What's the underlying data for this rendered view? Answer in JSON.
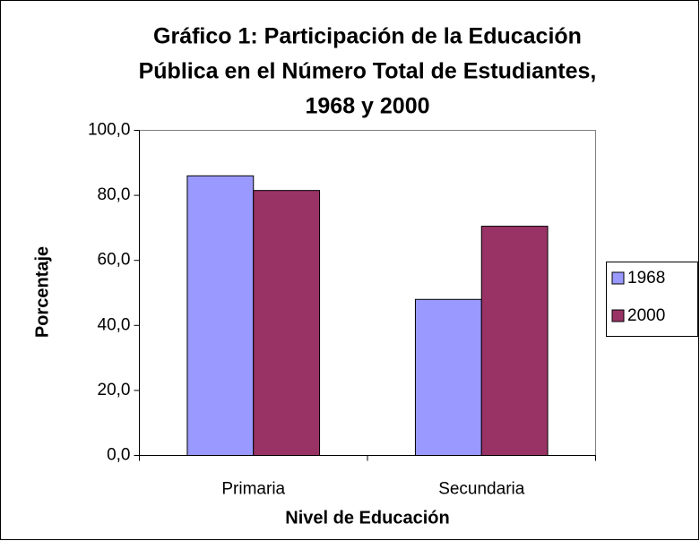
{
  "chart_data": {
    "type": "bar",
    "title": [
      "Gráfico 1: Participación de la Educación",
      "Pública en el Número Total de Estudiantes,",
      "1968 y 2000"
    ],
    "x_label": "Nivel de Educación",
    "y_label": "Porcentaje",
    "categories": [
      "Primaria",
      "Secundaria"
    ],
    "series": [
      {
        "name": "1968",
        "color": "#9999ff",
        "values": [
          86,
          48
        ]
      },
      {
        "name": "2000",
        "color": "#993366",
        "values": [
          81.5,
          70.5
        ]
      }
    ],
    "ylim": [
      0,
      100
    ],
    "yticks": [
      {
        "value": 0,
        "label": "0,0"
      },
      {
        "value": 20,
        "label": "20,0"
      },
      {
        "value": 40,
        "label": "40,0"
      },
      {
        "value": 60,
        "label": "60,0"
      },
      {
        "value": 80,
        "label": "80,0"
      },
      {
        "value": 100,
        "label": "100,0"
      }
    ],
    "legend": "right"
  }
}
